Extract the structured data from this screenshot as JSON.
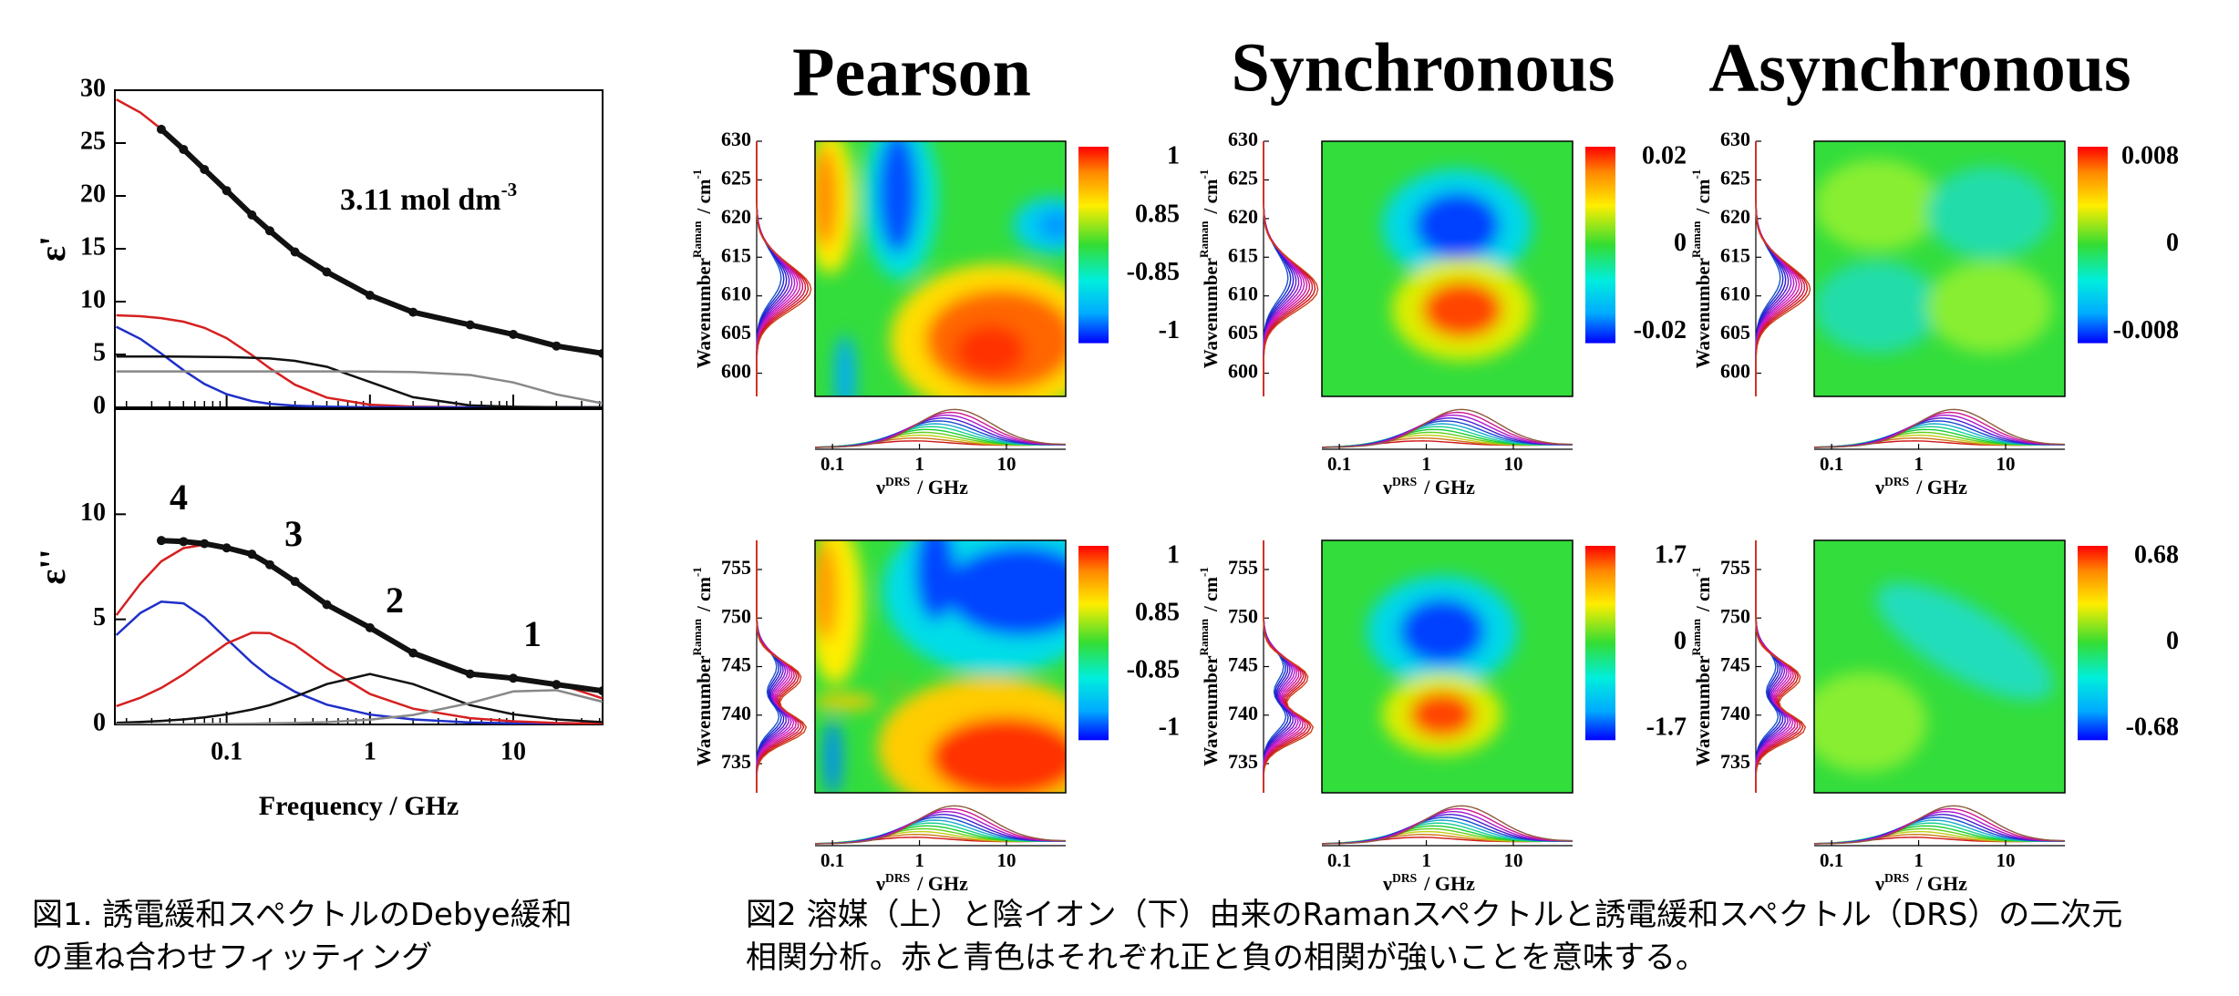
{
  "chart_data": [
    {
      "type": "line",
      "ylabel": "ε'",
      "xscale": "log",
      "xlim": [
        0.0166,
        42
      ],
      "xticks": [
        0.1,
        1,
        10
      ],
      "xtick_labels": false,
      "ylim": [
        0,
        30
      ],
      "yticks": [
        0,
        5,
        10,
        15,
        20,
        25,
        30
      ],
      "x": [
        0.017,
        0.025,
        0.035,
        0.05,
        0.07,
        0.1,
        0.15,
        0.2,
        0.3,
        0.5,
        1,
        2,
        5,
        10,
        20,
        42
      ],
      "series": [
        {
          "color": "#d62020",
          "values": [
            8.71,
            8.62,
            8.44,
            8.1,
            7.52,
            6.54,
            4.95,
            3.7,
            2.14,
            0.92,
            0.25,
            0.06,
            0.01,
            0,
            0,
            0
          ]
        },
        {
          "color": "#1f2fc8",
          "values": [
            7.62,
            6.47,
            5.09,
            3.51,
            2.21,
            1.24,
            0.59,
            0.34,
            0.15,
            0.06,
            0.01,
            0,
            0,
            0,
            0,
            0
          ]
        },
        {
          "color": "#111111",
          "values": [
            4.8,
            4.8,
            4.8,
            4.79,
            4.78,
            4.75,
            4.69,
            4.62,
            4.4,
            3.84,
            2.4,
            0.96,
            0.18,
            0.05,
            0.01,
            0
          ]
        },
        {
          "color": "#888888",
          "values": [
            3.4,
            3.4,
            3.4,
            3.4,
            3.4,
            3.4,
            3.4,
            3.4,
            3.4,
            3.4,
            3.39,
            3.34,
            3.06,
            2.35,
            1.22,
            0.38
          ]
        },
        {
          "color": "#d62020",
          "values": [
            29.13,
            27.89,
            26.33,
            24.4,
            22.51,
            20.53,
            18.23,
            16.66,
            14.69,
            12.82,
            10.65,
            8.96,
            7.85,
            7.0,
            5.83,
            4.98
          ]
        },
        {
          "color": "#111111",
          "style": "dots",
          "values": [
            null,
            null,
            26.3,
            24.4,
            22.5,
            20.5,
            18.2,
            16.7,
            14.7,
            12.8,
            10.6,
            9.0,
            7.8,
            6.9,
            5.8,
            5.1
          ]
        }
      ],
      "annotations": [
        {
          "text": "3.11 mol dm",
          "sup": "-3",
          "color": "#111111"
        }
      ]
    },
    {
      "type": "line",
      "ylabel": "ε''",
      "xlabel": "Frequency / GHz",
      "xscale": "log",
      "xlim": [
        0.0166,
        42
      ],
      "xticks": [
        0.1,
        1,
        10
      ],
      "ylim": [
        0,
        15
      ],
      "yticks": [
        0,
        5,
        10
      ],
      "x": [
        0.017,
        0.025,
        0.035,
        0.05,
        0.07,
        0.1,
        0.15,
        0.2,
        0.3,
        0.5,
        1,
        2,
        5,
        10,
        20,
        42
      ],
      "series": [
        {
          "color": "#1f2fc8",
          "values": [
            4.25,
            5.3,
            5.84,
            5.76,
            5.09,
            4.07,
            2.94,
            2.27,
            1.55,
            0.94,
            0.47,
            0.24,
            0.09,
            0.05,
            0.02,
            0.01
          ]
        },
        {
          "color": "#d62020",
          "values": [
            0.87,
            1.27,
            1.74,
            2.38,
            3.1,
            3.85,
            4.36,
            4.35,
            3.78,
            2.69,
            1.45,
            0.75,
            0.3,
            0.15,
            0.07,
            0.04
          ]
        },
        {
          "color": "#111111",
          "values": [
            0.08,
            0.12,
            0.17,
            0.24,
            0.34,
            0.48,
            0.71,
            0.92,
            1.32,
            1.92,
            2.4,
            1.92,
            0.92,
            0.48,
            0.24,
            0.11
          ]
        },
        {
          "color": "#888888",
          "values": [
            0,
            0.01,
            0.01,
            0.01,
            0.02,
            0.02,
            0.03,
            0.05,
            0.07,
            0.11,
            0.23,
            0.45,
            1.02,
            1.57,
            1.63,
            1.08
          ]
        },
        {
          "color": "#d62020",
          "values": [
            5.2,
            6.7,
            7.76,
            8.39,
            8.55,
            8.42,
            8.04,
            7.59,
            6.72,
            5.66,
            4.55,
            3.36,
            2.33,
            2.25,
            1.96,
            1.24
          ]
        },
        {
          "color": "#111111",
          "style": "dots",
          "values": [
            null,
            null,
            8.75,
            8.7,
            8.6,
            8.4,
            8.1,
            7.6,
            6.8,
            5.7,
            4.6,
            3.4,
            2.4,
            2.2,
            1.9,
            1.6
          ]
        }
      ],
      "annotations": [
        {
          "text": "4",
          "color": "#1f2fc8"
        },
        {
          "text": "3",
          "color": "#d62020"
        },
        {
          "text": "2",
          "color": "#111111"
        },
        {
          "text": "1",
          "color": "#888888"
        }
      ]
    }
  ],
  "figure2": {
    "titles": [
      "Pearson",
      "Synchronous",
      "Asynchronous"
    ],
    "ylabel": {
      "main": "Wavenumber",
      "sup": "Raman",
      "unit": "/ cm",
      "unit_sup": "-1"
    },
    "xlabel": {
      "main": "ν",
      "sup": "DRS",
      "unit": "/ GHz"
    },
    "xscale": "log",
    "xlim": [
      0.063,
      48
    ],
    "xticks": [
      0.1,
      1,
      10
    ],
    "rows": [
      {
        "ylim": [
          597,
          630
        ],
        "yticks": [
          630,
          625,
          620,
          615,
          610,
          605,
          600
        ],
        "colorbars": [
          [
            1,
            0.85,
            -0.85,
            -1
          ],
          [
            0.02,
            0,
            -0.02
          ],
          [
            0.008,
            0,
            -0.008
          ]
        ]
      },
      {
        "ylim": [
          732,
          758
        ],
        "yticks": [
          755,
          750,
          745,
          740,
          735
        ],
        "colorbars": [
          [
            1,
            0.85,
            -0.85,
            -1
          ],
          [
            1.7,
            0,
            -1.7
          ],
          [
            0.68,
            0,
            -0.68
          ]
        ]
      }
    ]
  },
  "captions": {
    "figure1": [
      "図1. 誘電緩和スペクトルのDebye緩和",
      "の重ね合わせフィッティング"
    ],
    "figure2": [
      "図2 溶媒（上）と陰イオン（下）由来のRamanスペクトルと誘電緩和スペクトル（DRS）の二次元",
      "相関分析。赤と青色はそれぞれ正と負の相関が強いことを意味する。"
    ]
  }
}
